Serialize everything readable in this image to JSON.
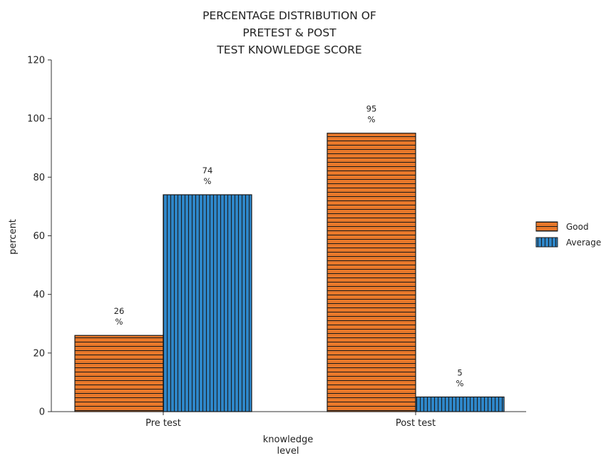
{
  "chart_data": {
    "type": "bar",
    "title_lines": [
      "PERCENTAGE DISTRIBUTION OF",
      "PRETEST & POST",
      "TEST KNOWLEDGE SCORE"
    ],
    "xlabel_lines": [
      "knowledge",
      "level"
    ],
    "ylabel": "percent",
    "ylim": [
      0,
      120
    ],
    "yticks": [
      0,
      20,
      40,
      60,
      80,
      100,
      120
    ],
    "categories": [
      "Pre test",
      "Post test"
    ],
    "series": [
      {
        "name": "Good",
        "values": [
          26,
          95
        ],
        "labels": [
          [
            "26",
            "%"
          ],
          [
            "95",
            "%"
          ]
        ],
        "color": "#E8782A",
        "pattern": "horizontal-stripes"
      },
      {
        "name": "Average",
        "values": [
          74,
          5
        ],
        "labels": [
          [
            "74",
            "%"
          ],
          [
            "5",
            "%"
          ]
        ],
        "color": "#2E86C8",
        "pattern": "vertical-stripes"
      }
    ],
    "grid": false,
    "legend": "right"
  }
}
